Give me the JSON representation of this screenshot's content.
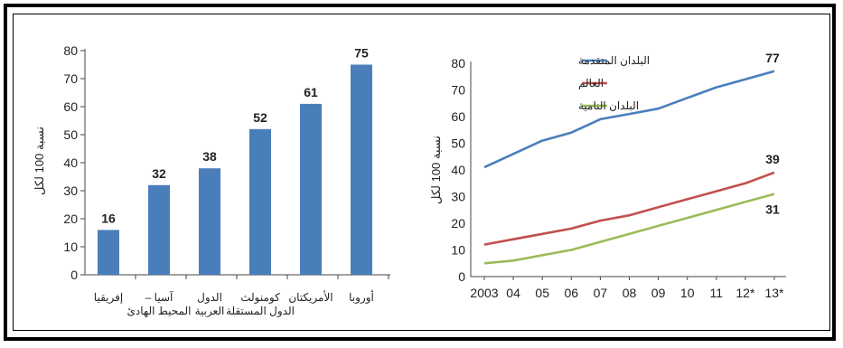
{
  "chart_data": [
    {
      "type": "bar",
      "ylabel": "نسبة 100 لكل",
      "ylim": [
        0,
        80
      ],
      "yticks": [
        0,
        10,
        20,
        30,
        40,
        50,
        60,
        70,
        80
      ],
      "categories": [
        "إفريقيا",
        "آسيا – المحيط الهادئ",
        "الدول العربية",
        "كومنولث الدول المستقلة",
        "الأمريكتان",
        "أوروبا"
      ],
      "category_lines": [
        [
          "إفريقيا"
        ],
        [
          "آسيا –",
          "المحيط الهادئ"
        ],
        [
          "الدول",
          "العربية"
        ],
        [
          "كومنولث",
          "الدول المستقلة"
        ],
        [
          "الأمريكتان"
        ],
        [
          "أوروبا"
        ]
      ],
      "values": [
        16,
        32,
        38,
        52,
        61,
        75
      ],
      "bar_color": "#4a7ebb",
      "grid": false
    },
    {
      "type": "line",
      "ylabel": "نسبة 100 لكل",
      "ylim": [
        0,
        80
      ],
      "yticks": [
        0,
        10,
        20,
        30,
        40,
        50,
        60,
        70,
        80
      ],
      "x": [
        "2003",
        "04",
        "05",
        "06",
        "07",
        "08",
        "09",
        "10",
        "11",
        "12*",
        "13*"
      ],
      "legend_position": "top-left",
      "series": [
        {
          "name": "البلدان المتقدمة",
          "color": "#4a7ebb",
          "values": [
            41,
            46,
            51,
            54,
            59,
            61,
            63,
            67,
            71,
            74,
            77
          ],
          "end_label": "77"
        },
        {
          "name": "العالم",
          "color": "#c0504d",
          "values": [
            12,
            14,
            16,
            18,
            21,
            23,
            26,
            29,
            32,
            35,
            39
          ],
          "end_label": "39"
        },
        {
          "name": "البلدان النامية",
          "color": "#9bbb59",
          "values": [
            5,
            6,
            8,
            10,
            13,
            16,
            19,
            22,
            25,
            28,
            31
          ],
          "end_label": "31"
        }
      ],
      "grid": false
    }
  ]
}
